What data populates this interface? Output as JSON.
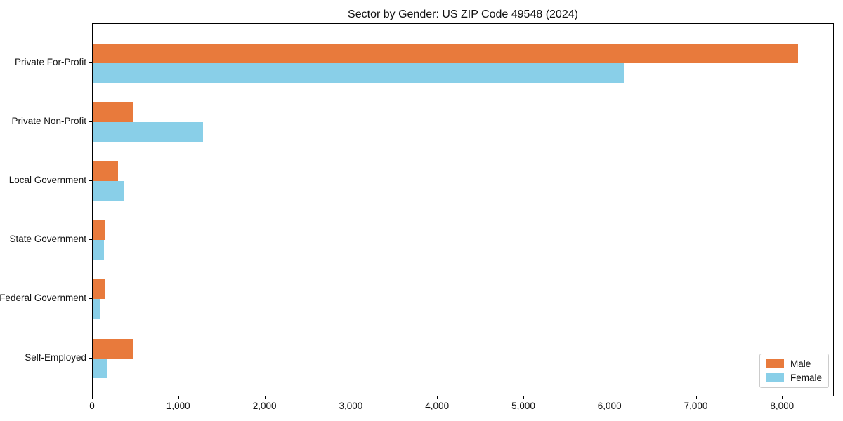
{
  "chart_data": {
    "type": "bar",
    "orientation": "horizontal",
    "title": "Sector by Gender: US ZIP Code 49548 (2024)",
    "categories": [
      "Private For-Profit",
      "Private Non-Profit",
      "Local Government",
      "State Government",
      "Federal Government",
      "Self-Employed"
    ],
    "series": [
      {
        "name": "Male",
        "color": "#e87a3c",
        "values": [
          8180,
          460,
          290,
          150,
          140,
          460
        ]
      },
      {
        "name": "Female",
        "color": "#89cfe8",
        "values": [
          6160,
          1280,
          370,
          130,
          80,
          170
        ]
      }
    ],
    "xlabel": "",
    "ylabel": "",
    "xlim": [
      0,
      8600
    ],
    "x_ticks": [
      0,
      1000,
      2000,
      3000,
      4000,
      5000,
      6000,
      7000,
      8000
    ],
    "x_tick_labels": [
      "0",
      "1,000",
      "2,000",
      "3,000",
      "4,000",
      "5,000",
      "6,000",
      "7,000",
      "8,000"
    ],
    "grid": false,
    "legend": {
      "position": "lower right"
    }
  }
}
